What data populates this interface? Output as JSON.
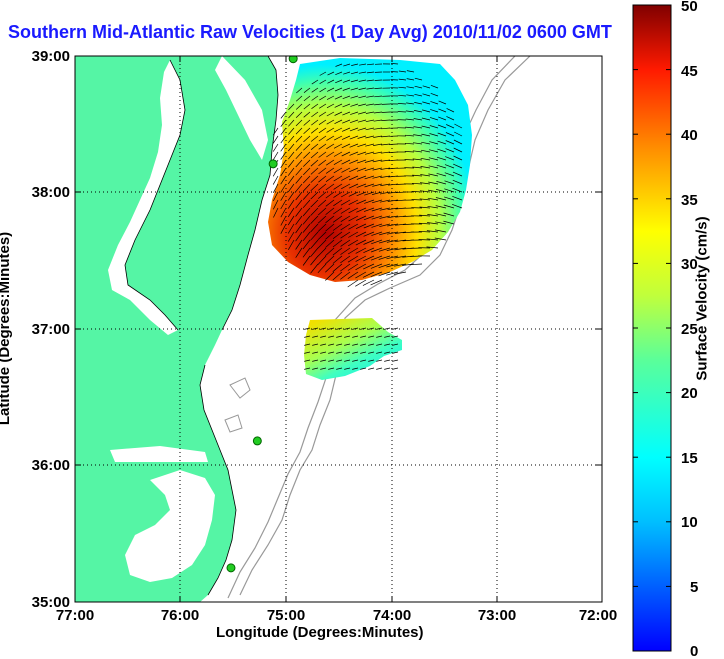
{
  "title": "Southern Mid-Atlantic Raw Velocities (1 Day Avg) 2010/11/02 0600 GMT",
  "axes": {
    "xlabel": "Longitude (Degrees:Minutes)",
    "ylabel": "Latitude (Degrees:Minutes)",
    "x_ticks": [
      "77:00",
      "76:00",
      "75:00",
      "74:00",
      "73:00",
      "72:00"
    ],
    "y_ticks": [
      "39:00",
      "38:00",
      "37:00",
      "36:00",
      "35:00"
    ]
  },
  "colorbar": {
    "label": "Surface Velocity (cm/s)",
    "ticks": [
      "50",
      "45",
      "40",
      "35",
      "30",
      "25",
      "20",
      "15",
      "10",
      "5",
      "0"
    ],
    "min": 0,
    "max": 50
  },
  "colors": {
    "land": "#55f5a5",
    "title": "#1a1aff",
    "station": "#22cc22",
    "bathymetry": "#999999"
  },
  "map": {
    "lon_range": [
      -77,
      -72
    ],
    "lat_range": [
      35,
      39
    ],
    "grid": true,
    "stations": [
      {
        "lon": -74.93,
        "lat": 38.98
      },
      {
        "lon": -75.12,
        "lat": 38.21
      },
      {
        "lon": -75.27,
        "lat": 36.18
      },
      {
        "lon": -75.52,
        "lat": 35.25
      }
    ]
  }
}
